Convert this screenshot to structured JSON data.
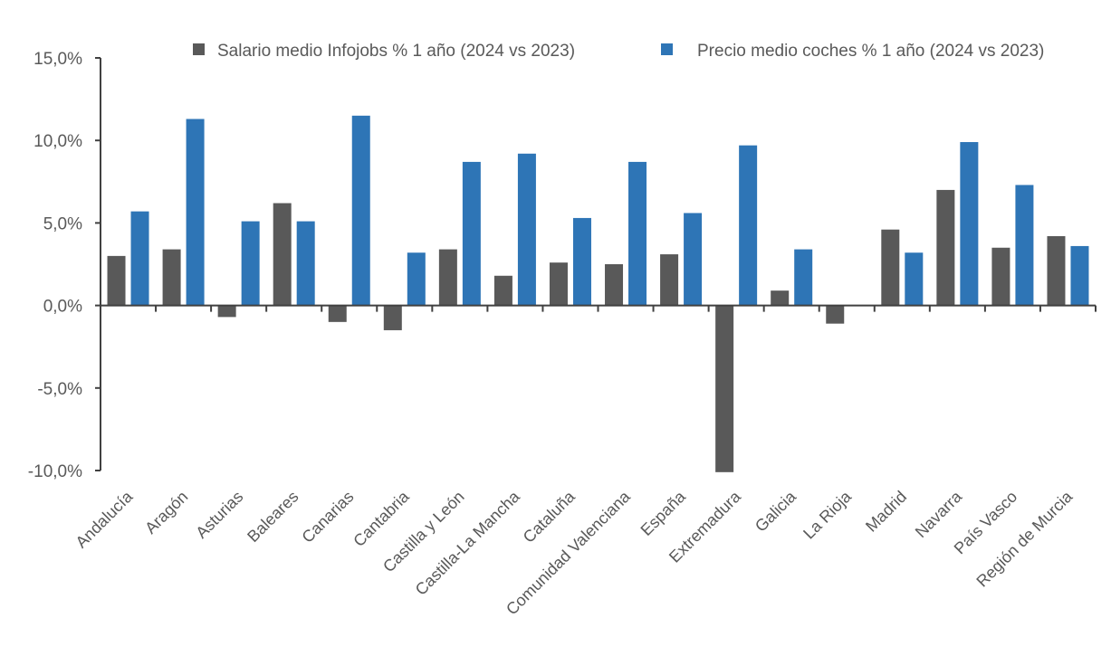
{
  "chart_data": {
    "type": "bar",
    "categories": [
      "Andalucía",
      "Aragón",
      "Asturias",
      "Baleares",
      "Canarias",
      "Cantabria",
      "Castilla y León",
      "Castilla-La Mancha",
      "Cataluña",
      "Comunidad Valenciana",
      "España",
      "Extremadura",
      "Galicia",
      "La Rioja",
      "Madrid",
      "Navarra",
      "País Vasco",
      "Región de Murcia"
    ],
    "series": [
      {
        "name": "Salario medio Infojobs % 1 año (2024 vs 2023)",
        "color": "#595959",
        "values": [
          3.0,
          3.4,
          -0.7,
          6.2,
          -1.0,
          -1.5,
          3.4,
          1.8,
          2.6,
          2.5,
          3.1,
          -10.1,
          0.9,
          -1.1,
          4.6,
          7.0,
          3.5,
          4.2
        ]
      },
      {
        "name": "Precio medio coches % 1 año (2024 vs 2023)",
        "color": "#2E75B6",
        "values": [
          5.7,
          11.3,
          5.1,
          5.1,
          11.5,
          3.2,
          8.7,
          9.2,
          5.3,
          8.7,
          5.6,
          9.7,
          3.4,
          null,
          3.2,
          9.9,
          7.3,
          3.6
        ]
      }
    ],
    "y_ticks": [
      "15,0%",
      "10,0%",
      "5,0%",
      "0,0%",
      "-5,0%",
      "-10,0%"
    ],
    "y_tick_values": [
      15,
      10,
      5,
      0,
      -5,
      -10
    ],
    "ylim": [
      -10,
      15
    ],
    "legend_position": "top-right",
    "grid": false
  }
}
